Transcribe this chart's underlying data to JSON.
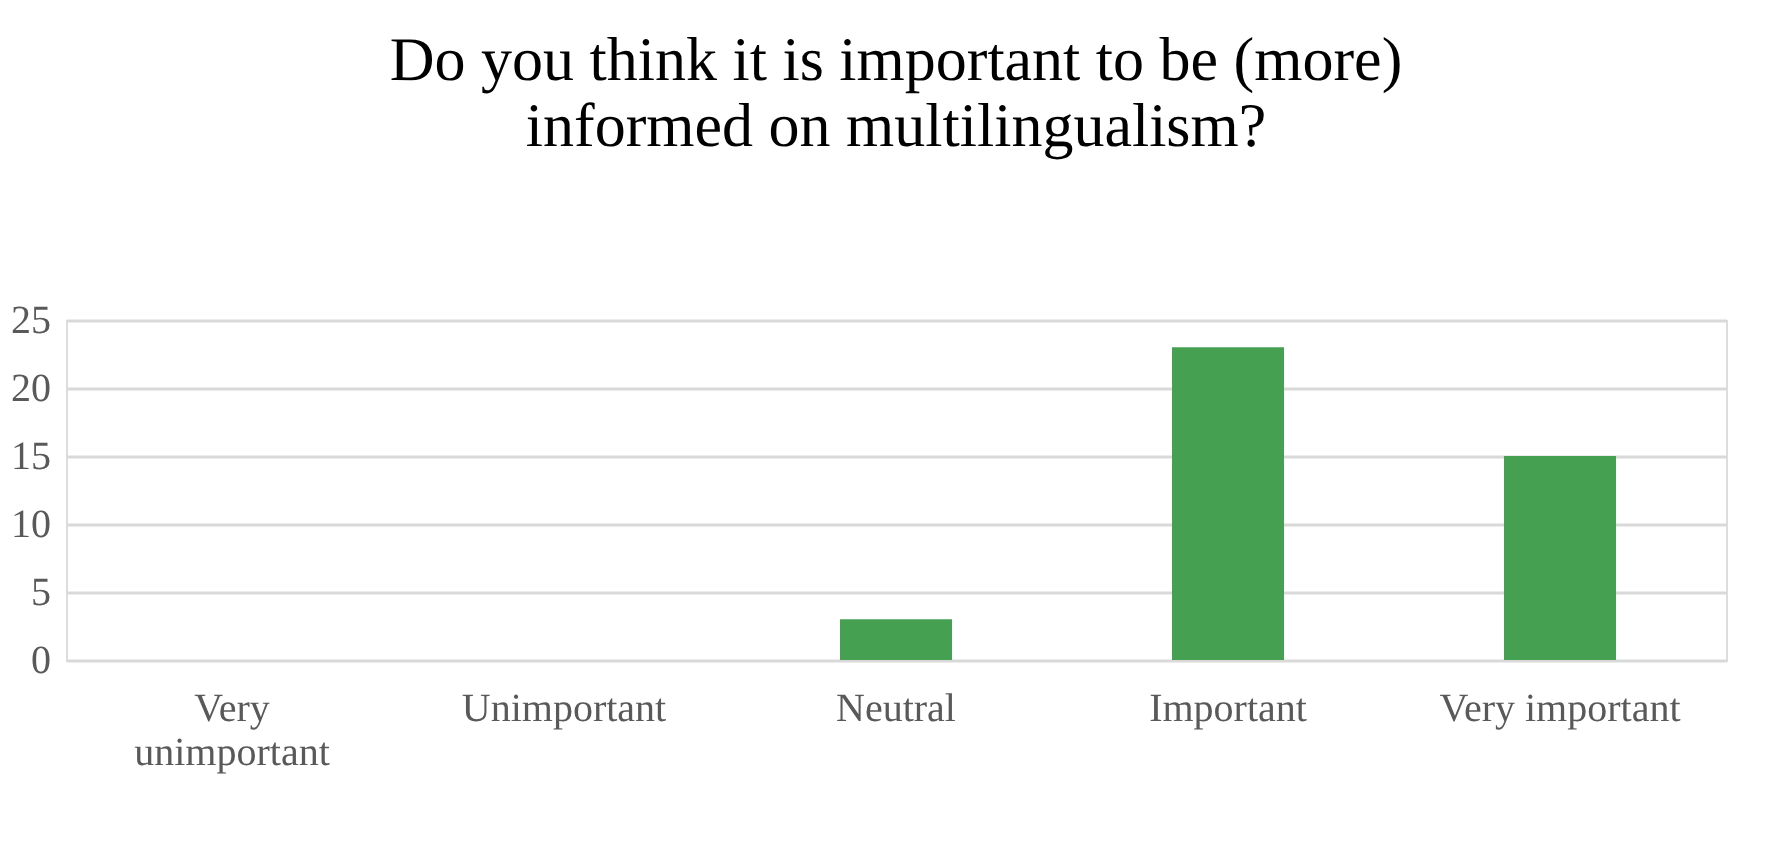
{
  "chart_data": {
    "type": "bar",
    "title": [
      "Do you think it is important to be (more)",
      "informed on multilingualism?"
    ],
    "categories": [
      "Very unimportant",
      "Unimportant",
      "Neutral",
      "Important",
      "Very important"
    ],
    "values": [
      0,
      0,
      3,
      23,
      15
    ],
    "color": "#46a052",
    "ylim": [
      0,
      25
    ],
    "yticks": [
      0,
      5,
      10,
      15,
      20,
      25
    ],
    "grid": "y"
  }
}
